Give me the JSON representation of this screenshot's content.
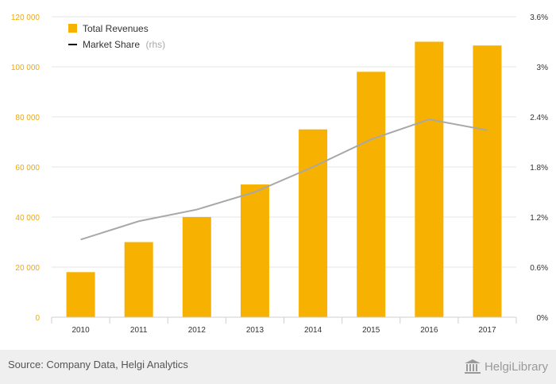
{
  "chart_data": {
    "type": "bar",
    "categories": [
      "2010",
      "2011",
      "2012",
      "2013",
      "2014",
      "2015",
      "2016",
      "2017"
    ],
    "series": [
      {
        "name": "Total Revenues",
        "type": "bar",
        "axis": "left",
        "color": "#f7b100",
        "values": [
          18000,
          30000,
          40000,
          53000,
          75000,
          98000,
          110000,
          108500
        ]
      },
      {
        "name": "Market Share",
        "type": "line",
        "axis": "right",
        "color": "#a8a8a8",
        "values": [
          0.93,
          1.15,
          1.29,
          1.5,
          1.8,
          2.13,
          2.37,
          2.24
        ]
      }
    ],
    "y_left": {
      "ylim": [
        0,
        120000
      ],
      "ticks": [
        0,
        20000,
        40000,
        60000,
        80000,
        100000,
        120000
      ],
      "tick_labels": [
        "0",
        "20 000",
        "40 000",
        "60 000",
        "80 000",
        "100 000",
        "120 000"
      ]
    },
    "y_right": {
      "ylim": [
        0,
        3.6
      ],
      "ticks": [
        0,
        0.6,
        1.2,
        1.8,
        2.4,
        3,
        3.6
      ],
      "tick_labels": [
        "0%",
        "0.6%",
        "1.2%",
        "1.8%",
        "2.4%",
        "3%",
        "3.6%"
      ]
    },
    "legend": {
      "position": "top-left",
      "items": [
        {
          "label": "Total Revenues",
          "marker": "square"
        },
        {
          "label": "Market Share",
          "marker": "line",
          "suffix": "(rhs)"
        }
      ]
    },
    "grid": true
  },
  "footer": {
    "source": "Source: Company Data, Helgi Analytics",
    "logo": "HelgiLibrary"
  }
}
